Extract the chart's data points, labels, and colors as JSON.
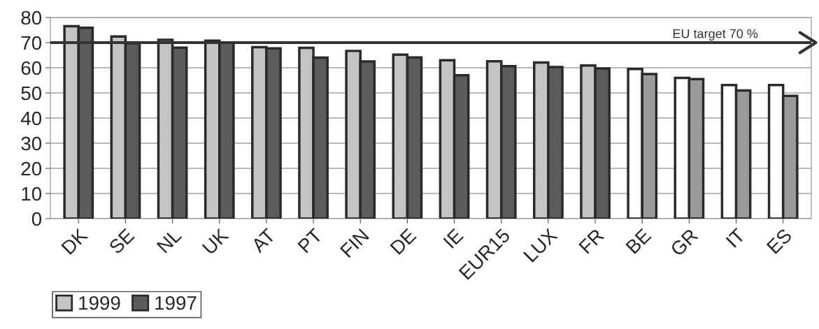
{
  "chart_data": {
    "type": "bar",
    "categories": [
      "DK",
      "SE",
      "NL",
      "UK",
      "AT",
      "PT",
      "FIN",
      "DE",
      "IE",
      "EUR15",
      "LUX",
      "FR",
      "BE",
      "GR",
      "IT",
      "ES"
    ],
    "series": [
      {
        "name": "1999",
        "color": "#c4c4c4",
        "colors": [
          "#c4c4c4",
          "#c4c4c4",
          "#c4c4c4",
          "#c4c4c4",
          "#c4c4c4",
          "#c4c4c4",
          "#c4c4c4",
          "#c4c4c4",
          "#c4c4c4",
          "#c4c4c4",
          "#c4c4c4",
          "#c4c4c4",
          "#ffffff",
          "#ffffff",
          "#ffffff",
          "#ffffff"
        ],
        "values": [
          76.5,
          72.4,
          71.1,
          70.8,
          68.2,
          67.9,
          66.7,
          65.2,
          63,
          62.6,
          62.1,
          60.9,
          59.5,
          56,
          53.1,
          53.1
        ]
      },
      {
        "name": "1997",
        "color": "#5c5c5c",
        "colors": [
          "#5c5c5c",
          "#5c5c5c",
          "#5c5c5c",
          "#5c5c5c",
          "#5c5c5c",
          "#5c5c5c",
          "#5c5c5c",
          "#5c5c5c",
          "#5c5c5c",
          "#5c5c5c",
          "#5c5c5c",
          "#5c5c5c",
          "#9a9a9a",
          "#9a9a9a",
          "#9a9a9a",
          "#9a9a9a"
        ],
        "values": [
          75.9,
          69.7,
          68,
          69.9,
          67.7,
          64,
          62.5,
          64.1,
          57,
          60.6,
          60.3,
          59.7,
          57.5,
          55.5,
          51,
          48.8
        ]
      }
    ],
    "ylim": [
      0,
      80
    ],
    "yticks": [
      0,
      10,
      20,
      30,
      40,
      50,
      60,
      70,
      80
    ],
    "grid": "y",
    "legend": "bottom left",
    "ref_lines": [
      {
        "axis": "y",
        "value": 70,
        "label": "EU target 70 %",
        "color": "#333333"
      }
    ]
  }
}
